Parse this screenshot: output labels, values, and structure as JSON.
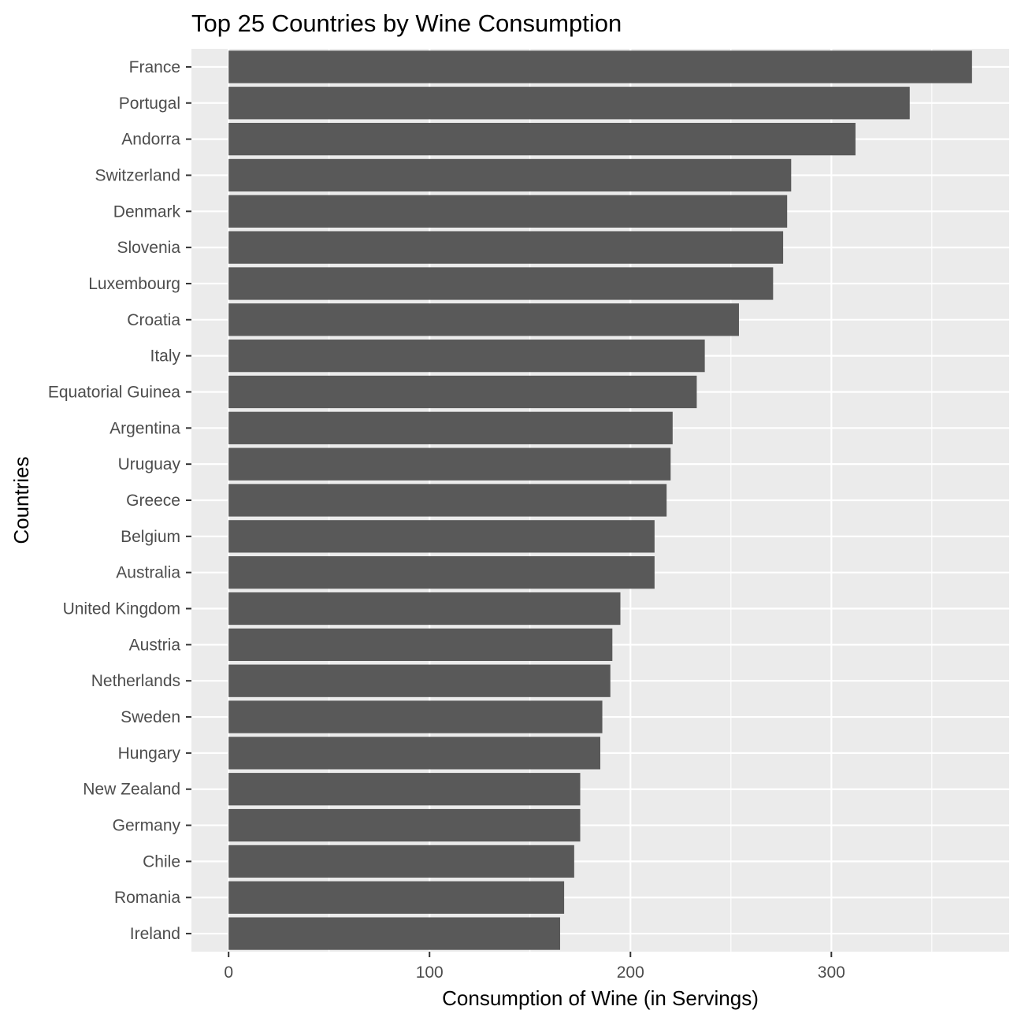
{
  "chart_data": {
    "type": "bar",
    "orientation": "horizontal",
    "title": "Top 25 Countries by Wine Consumption",
    "xlabel": "Consumption of Wine (in Servings)",
    "ylabel": "Countries",
    "xlim": [
      -18.5,
      388.5
    ],
    "xticks": [
      0,
      100,
      200,
      300
    ],
    "grid": true,
    "categories": [
      "France",
      "Portugal",
      "Andorra",
      "Switzerland",
      "Denmark",
      "Slovenia",
      "Luxembourg",
      "Croatia",
      "Italy",
      "Equatorial Guinea",
      "Argentina",
      "Uruguay",
      "Greece",
      "Belgium",
      "Australia",
      "United Kingdom",
      "Austria",
      "Netherlands",
      "Sweden",
      "Hungary",
      "New Zealand",
      "Germany",
      "Chile",
      "Romania",
      "Ireland"
    ],
    "values": [
      370,
      339,
      312,
      280,
      278,
      276,
      271,
      254,
      237,
      233,
      221,
      220,
      218,
      212,
      212,
      195,
      191,
      190,
      186,
      185,
      175,
      175,
      172,
      167,
      165
    ]
  },
  "colors": {
    "panel_background": "#ebebeb",
    "grid_major": "#ffffff",
    "bar_fill": "#595959",
    "tick_text": "#4d4d4d",
    "tick_mark": "#333333"
  }
}
